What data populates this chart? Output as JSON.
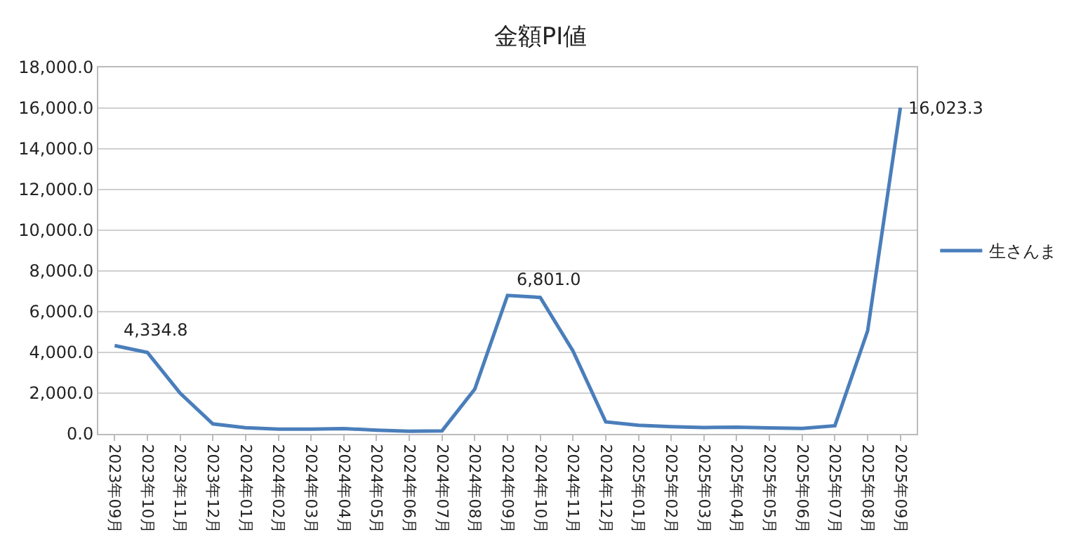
{
  "chart_data": {
    "type": "line",
    "title": "金額PI値",
    "categories": [
      "2023年09月",
      "2023年10月",
      "2023年11月",
      "2023年12月",
      "2024年01月",
      "2024年02月",
      "2024年03月",
      "2024年04月",
      "2024年05月",
      "2024年06月",
      "2024年07月",
      "2024年08月",
      "2024年09月",
      "2024年10月",
      "2024年11月",
      "2024年12月",
      "2025年01月",
      "2025年02月",
      "2025年03月",
      "2025年04月",
      "2025年05月",
      "2025年06月",
      "2025年07月",
      "2025年08月",
      "2025年09月"
    ],
    "series": [
      {
        "name": "生さんま",
        "color": "#4a7ebb",
        "values": [
          4334.8,
          4000,
          2000,
          490,
          300,
          230,
          230,
          260,
          180,
          130,
          150,
          2200,
          6801.0,
          6700,
          4070,
          590,
          420,
          350,
          310,
          330,
          290,
          270,
          400,
          5060,
          16023.3
        ],
        "value_labels": [
          "4,334.8",
          null,
          null,
          null,
          null,
          null,
          null,
          null,
          null,
          null,
          null,
          null,
          "6,801.0",
          null,
          null,
          null,
          null,
          null,
          null,
          null,
          null,
          null,
          null,
          null,
          "16,023.3"
        ]
      }
    ],
    "ylim": [
      0,
      18000
    ],
    "yticks": [
      {
        "value": 0,
        "label": "0.0"
      },
      {
        "value": 2000,
        "label": "2,000.0"
      },
      {
        "value": 4000,
        "label": "4,000.0"
      },
      {
        "value": 6000,
        "label": "6,000.0"
      },
      {
        "value": 8000,
        "label": "8,000.0"
      },
      {
        "value": 10000,
        "label": "10,000.0"
      },
      {
        "value": 12000,
        "label": "12,000.0"
      },
      {
        "value": 14000,
        "label": "14,000.0"
      },
      {
        "value": 16000,
        "label": "16,000.0"
      },
      {
        "value": 18000,
        "label": "18,000.0"
      }
    ],
    "grid": "y",
    "legend": "right",
    "marker": "none",
    "line_style": "solid"
  }
}
